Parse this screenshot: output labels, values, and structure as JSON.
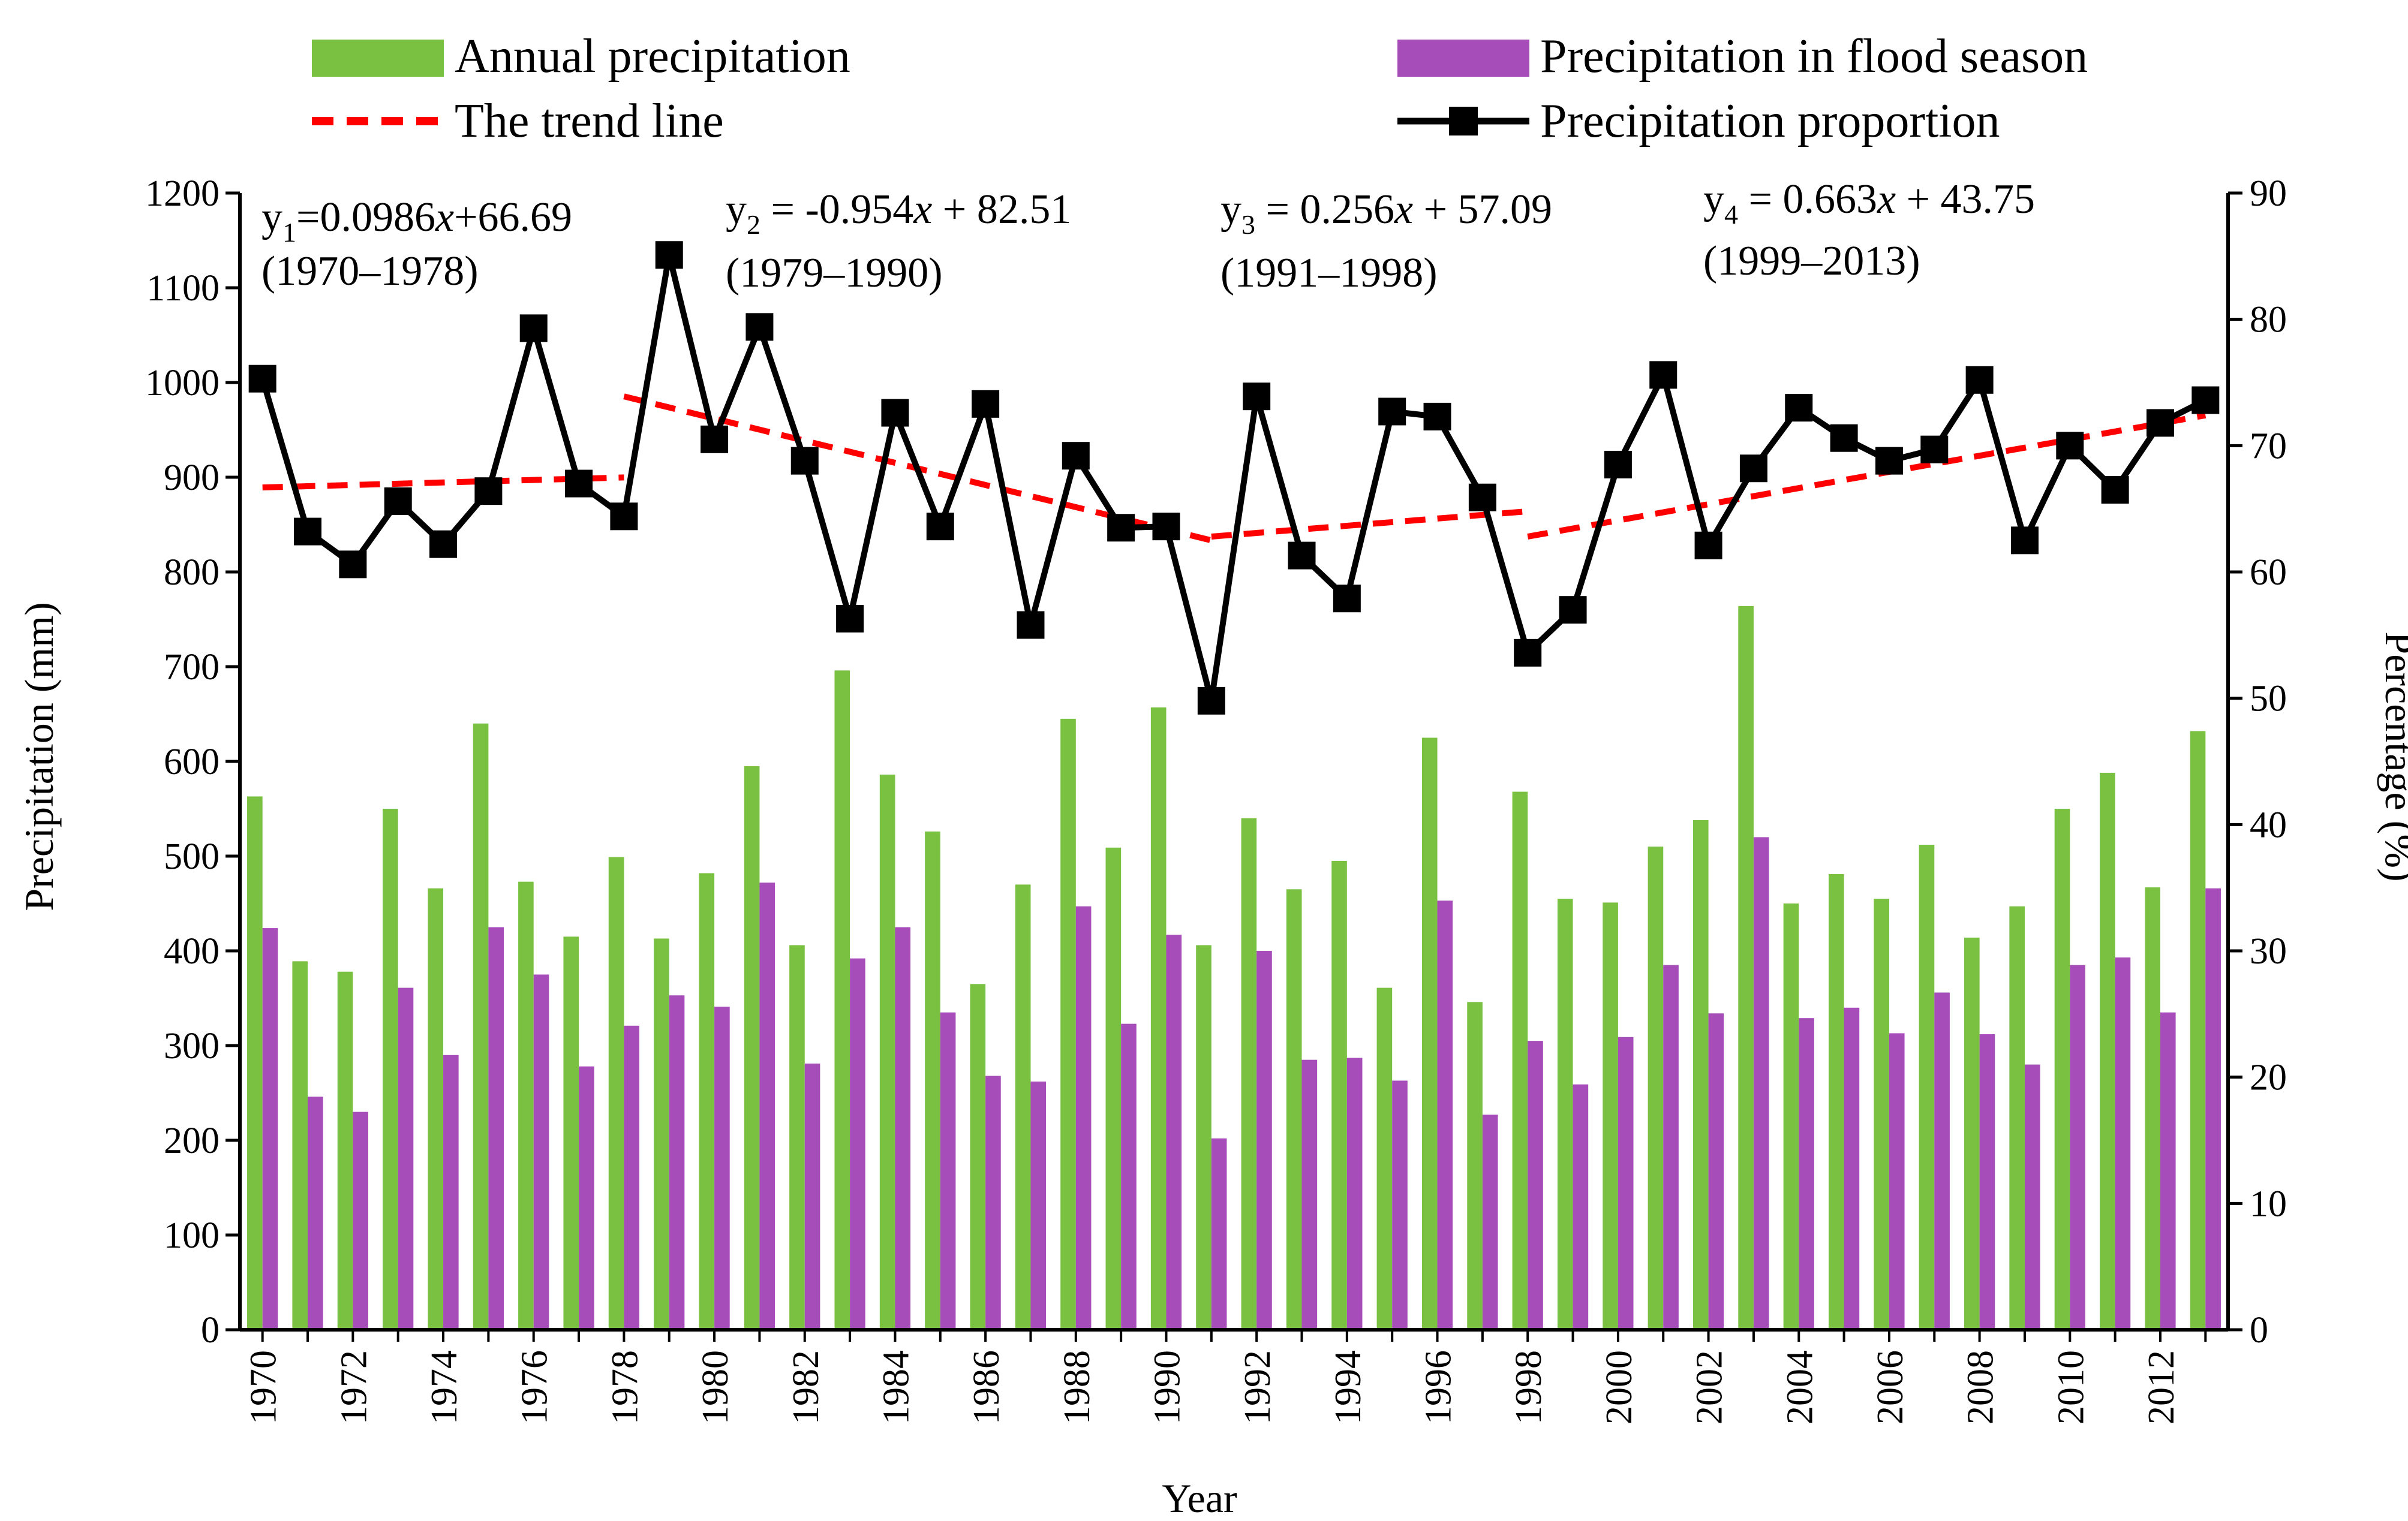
{
  "chart_data": {
    "type": "bar",
    "xlabel": "Year",
    "ylabel": "Precipitation (mm)",
    "y2label": "Percentage (%)",
    "ylim": [
      0,
      1200
    ],
    "y2lim": [
      0,
      90
    ],
    "yticks": [
      "0",
      "100",
      "200",
      "300",
      "400",
      "500",
      "600",
      "700",
      "800",
      "900",
      "1000",
      "1100",
      "1200"
    ],
    "y2ticks": [
      "0",
      "10",
      "20",
      "30",
      "40",
      "50",
      "60",
      "70",
      "80",
      "90"
    ],
    "years": [
      1970,
      1971,
      1972,
      1973,
      1974,
      1975,
      1976,
      1977,
      1978,
      1979,
      1980,
      1981,
      1982,
      1983,
      1984,
      1985,
      1986,
      1987,
      1988,
      1989,
      1990,
      1991,
      1992,
      1993,
      1994,
      1995,
      1996,
      1997,
      1998,
      1999,
      2000,
      2001,
      2002,
      2003,
      2004,
      2005,
      2006,
      2007,
      2008,
      2009,
      2010,
      2011,
      2012,
      2013
    ],
    "xtick_labels": [
      "1970",
      "1972",
      "1974",
      "1976",
      "1978",
      "1980",
      "1982",
      "1984",
      "1986",
      "1988",
      "1990",
      "1992",
      "1994",
      "1996",
      "1998",
      "2000",
      "2002",
      "2004",
      "2006",
      "2008",
      "2010",
      "2012"
    ],
    "grid": false,
    "legend_position": "top",
    "series": [
      {
        "name": "Annual precipitation",
        "kind": "bar",
        "axis": "left",
        "color": "#7ac142",
        "values": [
          563,
          389,
          378,
          550,
          466,
          640,
          473,
          415,
          499,
          413,
          482,
          595,
          406,
          696,
          586,
          526,
          365,
          470,
          645,
          509,
          657,
          406,
          540,
          465,
          495,
          361,
          625,
          346,
          568,
          455,
          451,
          510,
          538,
          764,
          450,
          481,
          455,
          512,
          414,
          447,
          550,
          588,
          467,
          632
        ]
      },
      {
        "name": "Precipitation in flood season",
        "kind": "bar",
        "axis": "left",
        "color": "#a64dba",
        "values": [
          424,
          246,
          230,
          361,
          290,
          425,
          375,
          278,
          321,
          353,
          341,
          472,
          281,
          392,
          425,
          335,
          268,
          262,
          447,
          323,
          417,
          202,
          400,
          285,
          287,
          263,
          453,
          227,
          305,
          259,
          309,
          385,
          334,
          520,
          329,
          340,
          313,
          356,
          312,
          280,
          385,
          393,
          335,
          466
        ]
      },
      {
        "name": "Precipitation proportion",
        "kind": "line",
        "axis": "right",
        "color": "#000000",
        "marker": "square",
        "values": [
          75.3,
          63.2,
          60.6,
          65.6,
          62.2,
          66.4,
          79.3,
          67.0,
          64.4,
          85.1,
          70.5,
          79.4,
          68.8,
          56.3,
          72.6,
          63.6,
          73.3,
          55.8,
          69.2,
          63.5,
          63.6,
          49.8,
          73.9,
          61.3,
          57.9,
          72.7,
          72.3,
          65.9,
          53.6,
          57.0,
          68.5,
          75.6,
          62.1,
          68.2,
          73.0,
          70.6,
          68.8,
          69.7,
          75.2,
          62.5,
          70.0,
          66.5,
          71.8,
          73.6
        ]
      }
    ],
    "trend_line": {
      "name": "The trend line",
      "color": "#ff0000",
      "segments": [
        {
          "x": [
            1970,
            1978
          ],
          "y": [
            66.69,
            67.48
          ]
        },
        {
          "x": [
            1978,
            1991
          ],
          "y": [
            73.9,
            62.5
          ]
        },
        {
          "x": [
            1991,
            1998
          ],
          "y": [
            62.8,
            64.8
          ]
        },
        {
          "x": [
            1998,
            2013
          ],
          "y": [
            62.8,
            72.4
          ]
        }
      ]
    },
    "annotations": [
      {
        "base": "y",
        "sub": "1",
        "formula": "=0.0986",
        "var": "x",
        "rest": "+66.69",
        "period": "(1970–1978)"
      },
      {
        "base": "y",
        "sub": "2",
        "formula": " = -0.954",
        "var": "x",
        "rest": " + 82.51",
        "period": "(1979–1990)"
      },
      {
        "base": "y",
        "sub": "3",
        "formula": " = 0.256",
        "var": "x",
        "rest": " + 57.09",
        "period": "(1991–1998)"
      },
      {
        "base": "y",
        "sub": "4",
        "formula": " = 0.663",
        "var": "x",
        "rest": " + 43.75",
        "period": "(1999–2013)"
      }
    ]
  }
}
